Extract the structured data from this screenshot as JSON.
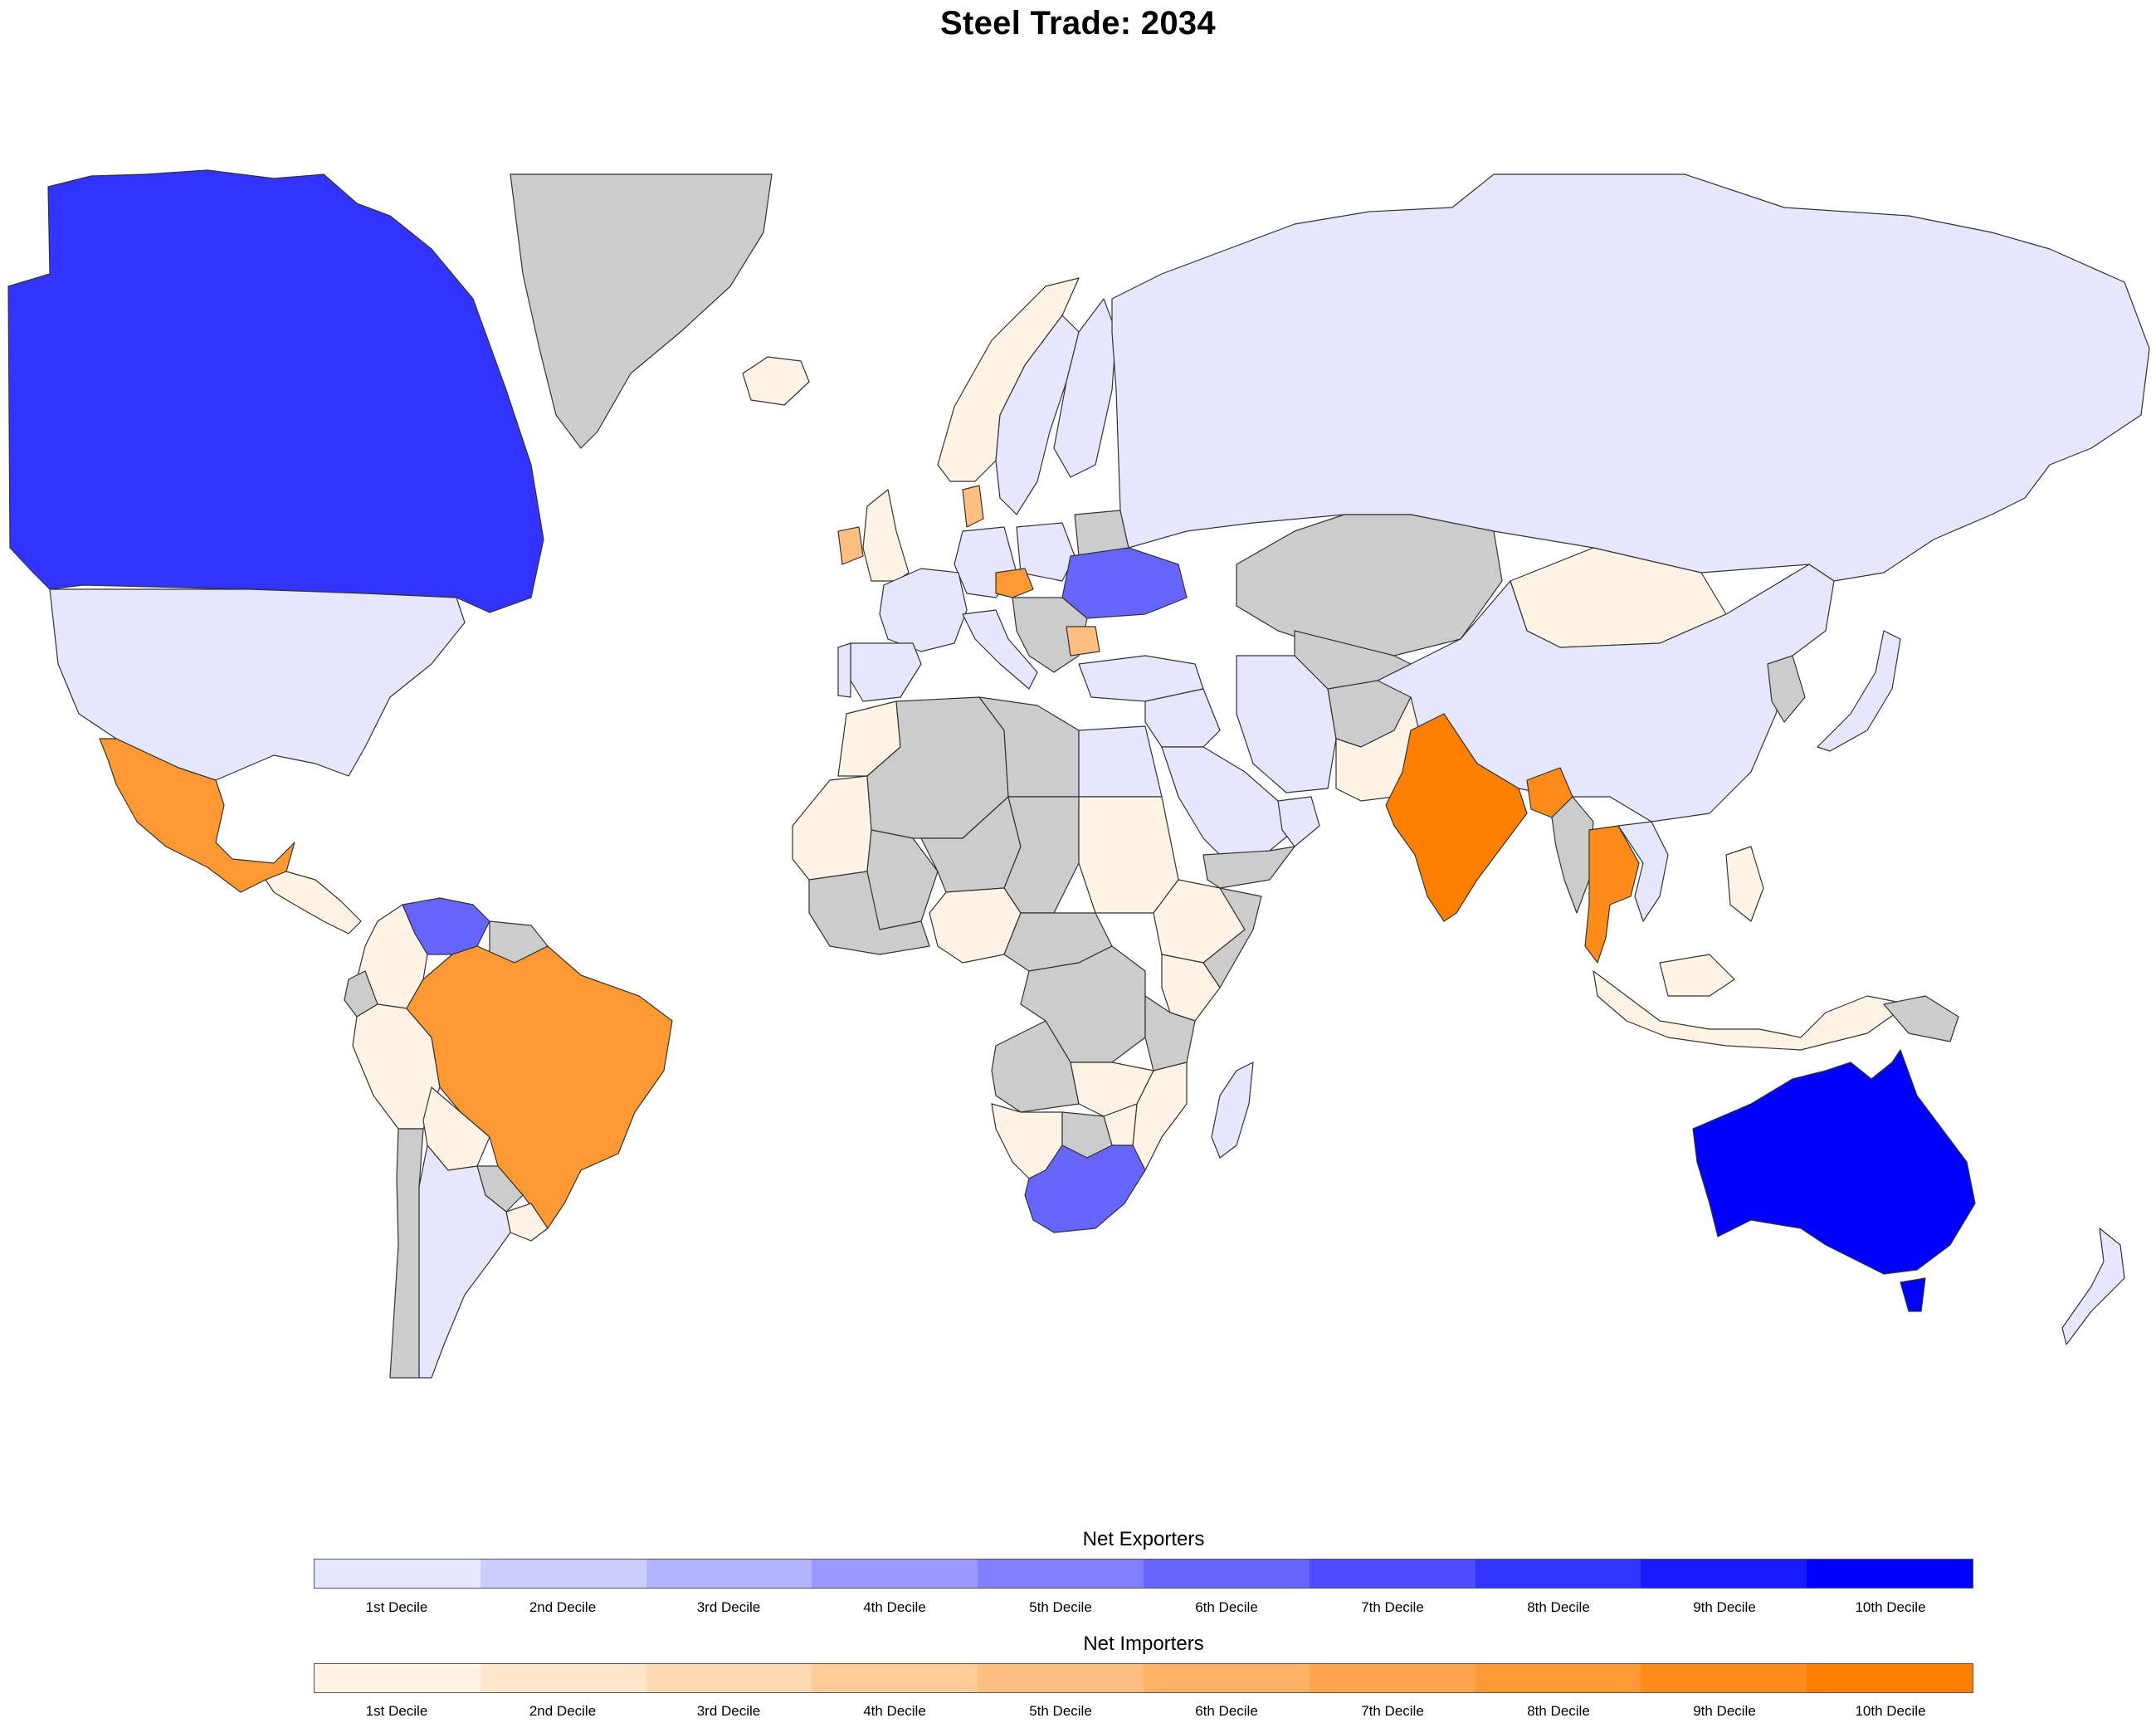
{
  "title": "Steel Trade: 2034",
  "colors": {
    "no_data": "#cccccc",
    "ocean": "#ffffff",
    "border": "#333333"
  },
  "legend": {
    "exporters": {
      "title": "Net Exporters",
      "colors": [
        "#e6e6ff",
        "#ccccff",
        "#b3b3ff",
        "#9999ff",
        "#8080ff",
        "#6666ff",
        "#4d4dff",
        "#3333ff",
        "#1a1aff",
        "#0000ff"
      ]
    },
    "importers": {
      "title": "Net Importers",
      "colors": [
        "#fff3e6",
        "#ffe6cc",
        "#ffd9b3",
        "#ffcc99",
        "#ffbf80",
        "#ffb266",
        "#ffa54d",
        "#ff9933",
        "#ff8c1a",
        "#ff8000"
      ]
    },
    "decile_labels": [
      "1st Decile",
      "2nd Decile",
      "3rd Decile",
      "4th Decile",
      "5th Decile",
      "6th Decile",
      "7th Decile",
      "8th Decile",
      "9th Decile",
      "10th Decile"
    ]
  },
  "regions": [
    {
      "name": "Canada",
      "class": "exporter",
      "decile": 8
    },
    {
      "name": "United States",
      "class": "exporter",
      "decile": 1
    },
    {
      "name": "Mexico",
      "class": "importer",
      "decile": 8
    },
    {
      "name": "Greenland",
      "class": "no_data"
    },
    {
      "name": "Venezuela",
      "class": "exporter",
      "decile": 6
    },
    {
      "name": "Colombia",
      "class": "importer",
      "decile": 1
    },
    {
      "name": "Peru",
      "class": "importer",
      "decile": 1
    },
    {
      "name": "Bolivia",
      "class": "importer",
      "decile": 1
    },
    {
      "name": "Brazil",
      "class": "importer",
      "decile": 8
    },
    {
      "name": "Argentina",
      "class": "exporter",
      "decile": 1
    },
    {
      "name": "Chile",
      "class": "no_data"
    },
    {
      "name": "Paraguay",
      "class": "no_data"
    },
    {
      "name": "Uruguay",
      "class": "importer",
      "decile": 1
    },
    {
      "name": "Iceland",
      "class": "importer",
      "decile": 1
    },
    {
      "name": "Norway",
      "class": "importer",
      "decile": 1
    },
    {
      "name": "Sweden",
      "class": "exporter",
      "decile": 1
    },
    {
      "name": "Finland",
      "class": "exporter",
      "decile": 1
    },
    {
      "name": "Denmark",
      "class": "importer",
      "decile": 5
    },
    {
      "name": "United Kingdom",
      "class": "importer",
      "decile": 1
    },
    {
      "name": "Ireland",
      "class": "importer",
      "decile": 5
    },
    {
      "name": "France",
      "class": "exporter",
      "decile": 1
    },
    {
      "name": "Spain",
      "class": "exporter",
      "decile": 1
    },
    {
      "name": "Portugal",
      "class": "exporter",
      "decile": 1
    },
    {
      "name": "Germany",
      "class": "exporter",
      "decile": 1
    },
    {
      "name": "Poland",
      "class": "exporter",
      "decile": 1
    },
    {
      "name": "Czech Republic",
      "class": "importer",
      "decile": 8
    },
    {
      "name": "Italy",
      "class": "exporter",
      "decile": 1
    },
    {
      "name": "Ukraine",
      "class": "exporter",
      "decile": 6
    },
    {
      "name": "Belarus",
      "class": "no_data"
    },
    {
      "name": "Bulgaria",
      "class": "importer",
      "decile": 5
    },
    {
      "name": "Turkey",
      "class": "exporter",
      "decile": 1
    },
    {
      "name": "Russia",
      "class": "exporter",
      "decile": 1
    },
    {
      "name": "Kazakhstan",
      "class": "no_data"
    },
    {
      "name": "Mongolia",
      "class": "importer",
      "decile": 1
    },
    {
      "name": "China",
      "class": "exporter",
      "decile": 1
    },
    {
      "name": "Japan",
      "class": "exporter",
      "decile": 1
    },
    {
      "name": "South Korea",
      "class": "importer",
      "decile": 1
    },
    {
      "name": "Iran",
      "class": "exporter",
      "decile": 1
    },
    {
      "name": "Saudi Arabia",
      "class": "exporter",
      "decile": 1
    },
    {
      "name": "Oman",
      "class": "exporter",
      "decile": 1
    },
    {
      "name": "Yemen",
      "class": "no_data"
    },
    {
      "name": "Pakistan",
      "class": "importer",
      "decile": 1
    },
    {
      "name": "Afghanistan",
      "class": "no_data"
    },
    {
      "name": "India",
      "class": "importer",
      "decile": 10
    },
    {
      "name": "Bangladesh",
      "class": "importer",
      "decile": 9
    },
    {
      "name": "Myanmar",
      "class": "no_data"
    },
    {
      "name": "Thailand",
      "class": "importer",
      "decile": 9
    },
    {
      "name": "Vietnam",
      "class": "exporter",
      "decile": 1
    },
    {
      "name": "Philippines",
      "class": "importer",
      "decile": 1
    },
    {
      "name": "Malaysia",
      "class": "importer",
      "decile": 1
    },
    {
      "name": "Indonesia",
      "class": "importer",
      "decile": 1
    },
    {
      "name": "Papua New Guinea",
      "class": "no_data"
    },
    {
      "name": "Australia",
      "class": "exporter",
      "decile": 10
    },
    {
      "name": "New Zealand",
      "class": "exporter",
      "decile": 1
    },
    {
      "name": "Egypt",
      "class": "exporter",
      "decile": 1
    },
    {
      "name": "Libya",
      "class": "no_data"
    },
    {
      "name": "Algeria",
      "class": "no_data"
    },
    {
      "name": "Morocco",
      "class": "importer",
      "decile": 1
    },
    {
      "name": "Mauritania",
      "class": "importer",
      "decile": 1
    },
    {
      "name": "Mali",
      "class": "no_data"
    },
    {
      "name": "Niger",
      "class": "no_data"
    },
    {
      "name": "Chad",
      "class": "no_data"
    },
    {
      "name": "Sudan",
      "class": "importer",
      "decile": 1
    },
    {
      "name": "Ethiopia",
      "class": "importer",
      "decile": 1
    },
    {
      "name": "Somalia",
      "class": "no_data"
    },
    {
      "name": "Nigeria",
      "class": "importer",
      "decile": 1
    },
    {
      "name": "Kenya",
      "class": "importer",
      "decile": 1
    },
    {
      "name": "Tanzania",
      "class": "no_data"
    },
    {
      "name": "Congo DR",
      "class": "no_data"
    },
    {
      "name": "Angola",
      "class": "no_data"
    },
    {
      "name": "Namibia",
      "class": "importer",
      "decile": 1
    },
    {
      "name": "Mozambique",
      "class": "importer",
      "decile": 1
    },
    {
      "name": "Zimbabwe",
      "class": "importer",
      "decile": 1
    },
    {
      "name": "Botswana",
      "class": "no_data"
    },
    {
      "name": "South Africa",
      "class": "exporter",
      "decile": 6
    },
    {
      "name": "Madagascar",
      "class": "exporter",
      "decile": 1
    }
  ]
}
